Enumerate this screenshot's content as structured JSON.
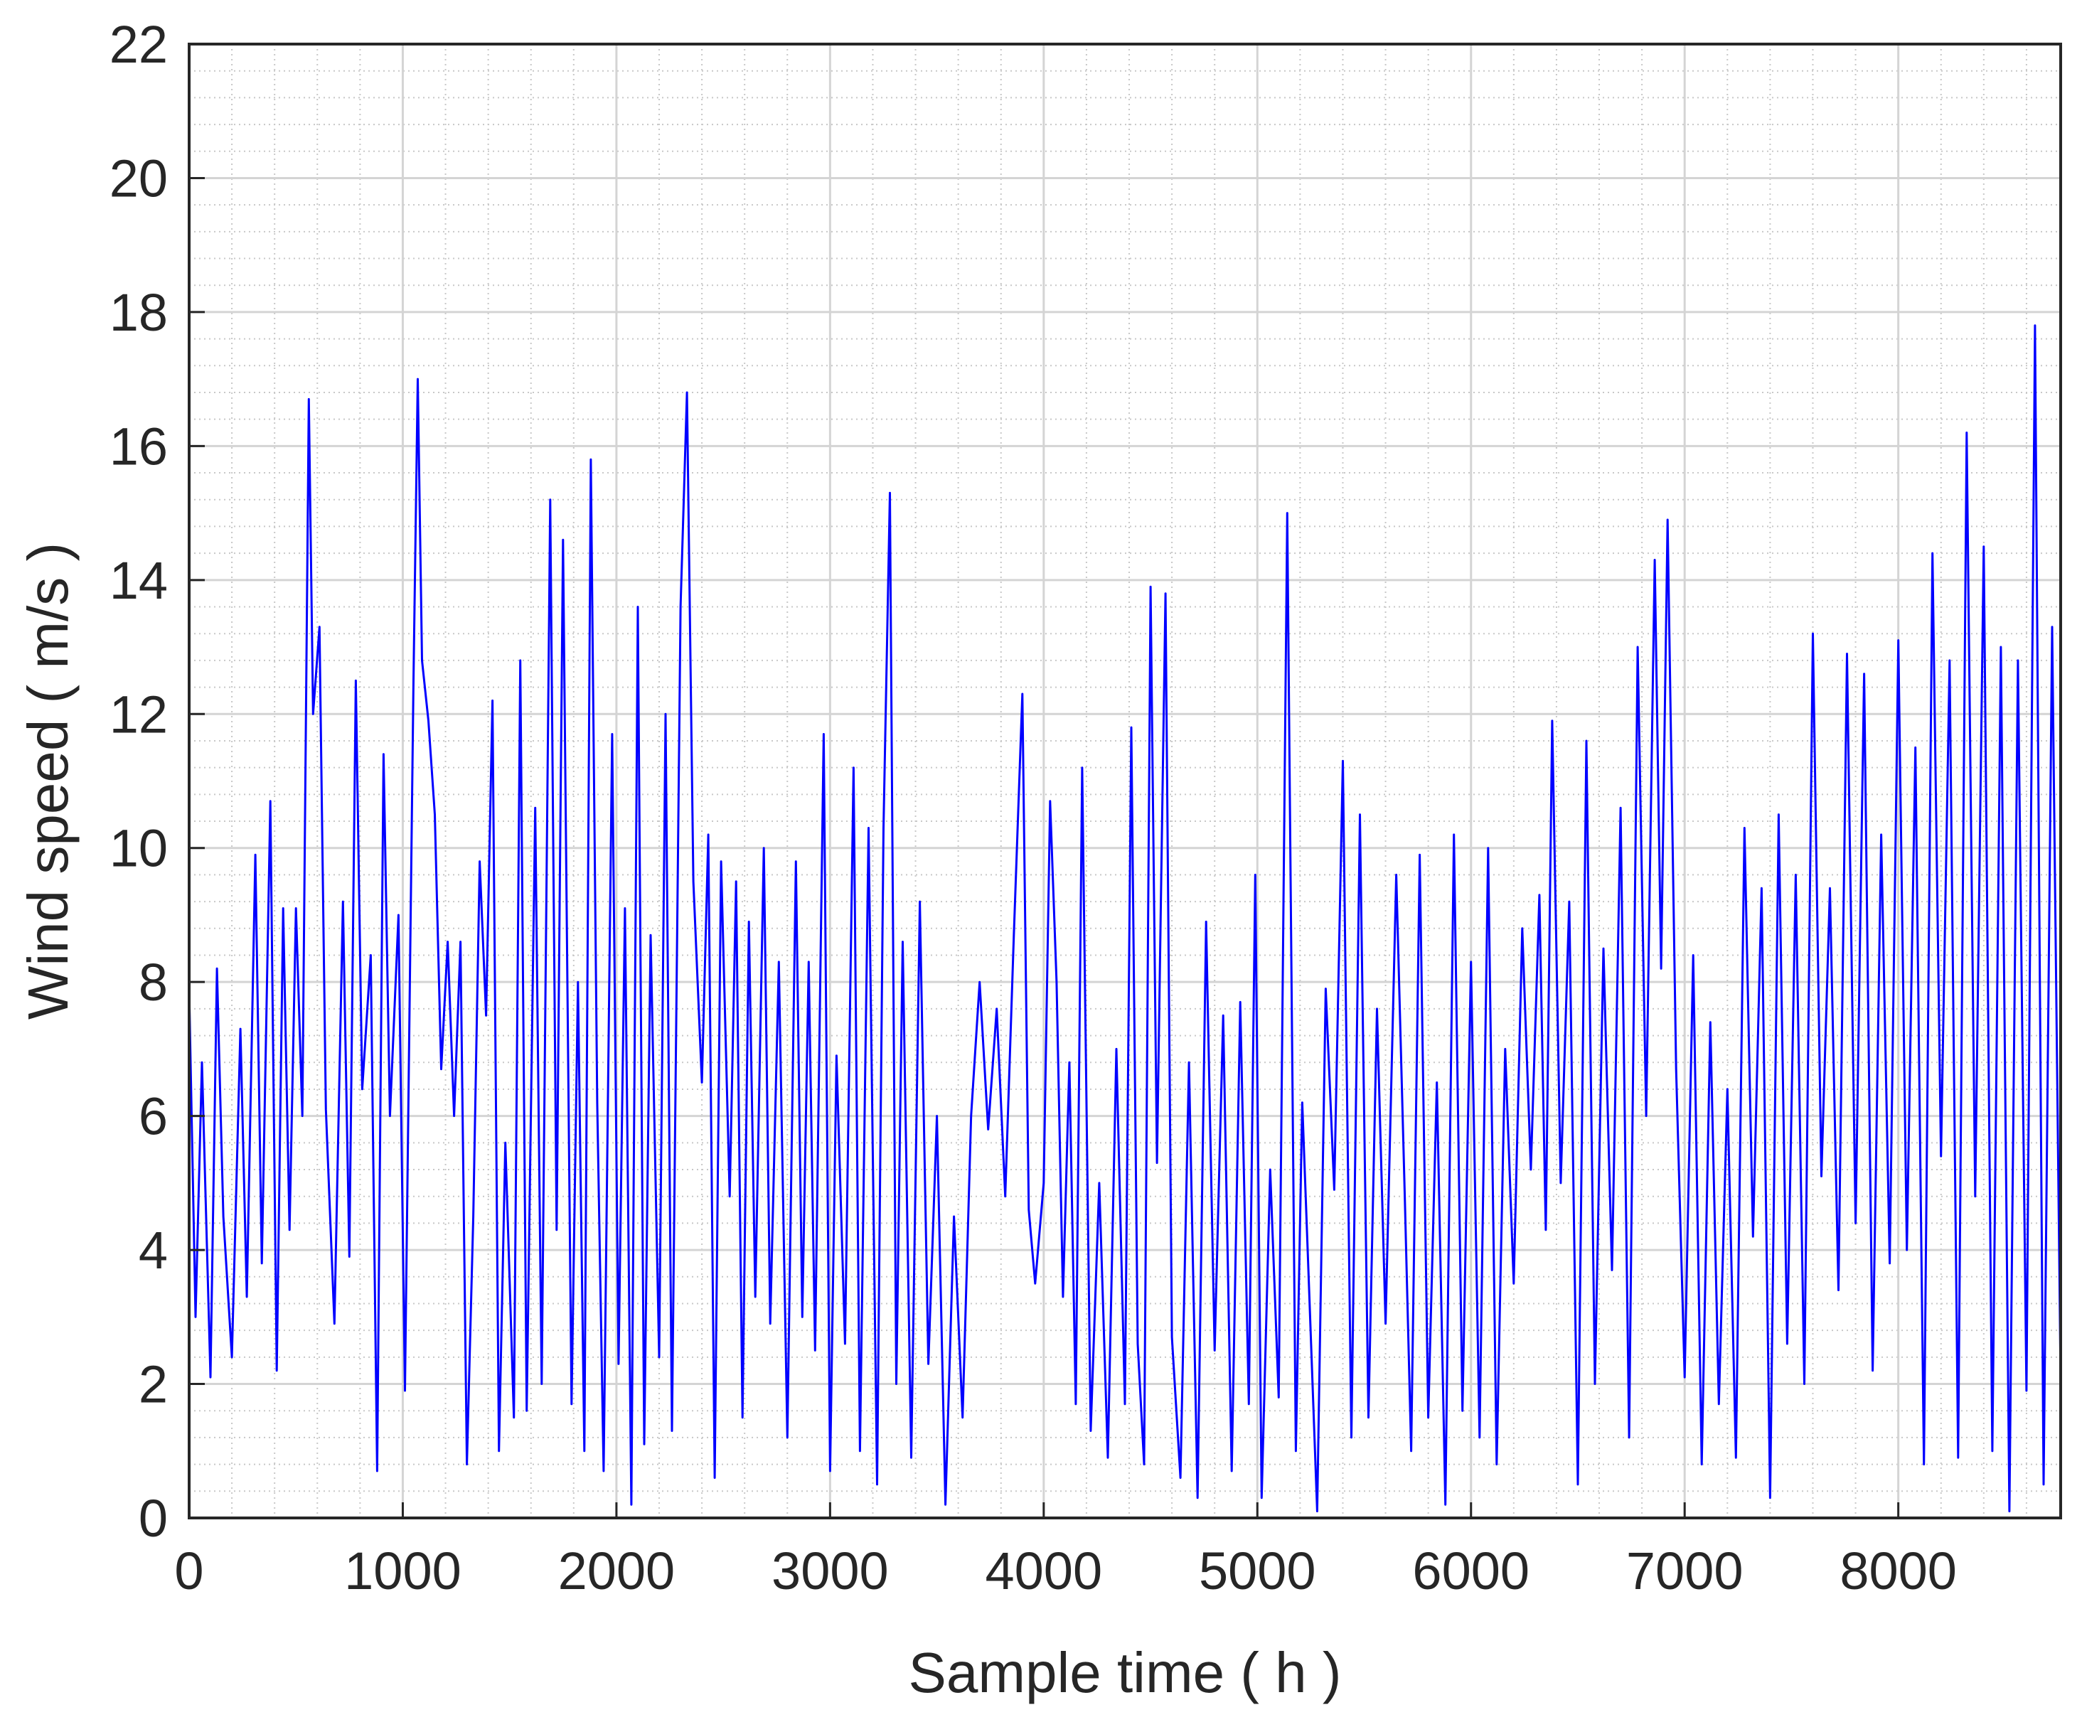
{
  "chart_data": {
    "type": "line",
    "title": "",
    "xlabel": "Sample time ( h )",
    "ylabel": "Wind speed ( m/s )",
    "xlim": [
      0,
      8760
    ],
    "ylim": [
      0,
      22
    ],
    "xticks": [
      0,
      1000,
      2000,
      3000,
      4000,
      5000,
      6000,
      7000,
      8000
    ],
    "yticks": [
      0,
      2,
      4,
      6,
      8,
      10,
      12,
      14,
      16,
      18,
      20,
      22
    ],
    "xtick_labels": [
      "0",
      "1000",
      "2000",
      "3000",
      "4000",
      "5000",
      "6000",
      "7000",
      "8000"
    ],
    "ytick_labels": [
      "0",
      "2",
      "4",
      "6",
      "8",
      "10",
      "12",
      "14",
      "16",
      "18",
      "20",
      "22"
    ],
    "grid": true,
    "minor_grid": true,
    "legend": "none",
    "line_color": "#0000ff",
    "series": [
      {
        "values_note_x": "hourly samples, approximate",
        "points": [
          [
            0,
            7.9
          ],
          [
            30,
            3.0
          ],
          [
            60,
            6.8
          ],
          [
            100,
            2.1
          ],
          [
            130,
            8.2
          ],
          [
            160,
            4.5
          ],
          [
            200,
            2.4
          ],
          [
            240,
            7.3
          ],
          [
            270,
            3.3
          ],
          [
            310,
            9.9
          ],
          [
            340,
            3.8
          ],
          [
            380,
            10.7
          ],
          [
            410,
            2.2
          ],
          [
            440,
            9.1
          ],
          [
            470,
            4.3
          ],
          [
            500,
            9.1
          ],
          [
            530,
            6.0
          ],
          [
            560,
            16.7
          ],
          [
            580,
            12.0
          ],
          [
            610,
            13.3
          ],
          [
            640,
            6.1
          ],
          [
            680,
            2.9
          ],
          [
            720,
            9.2
          ],
          [
            750,
            3.9
          ],
          [
            780,
            12.5
          ],
          [
            810,
            6.4
          ],
          [
            850,
            8.4
          ],
          [
            880,
            0.7
          ],
          [
            910,
            11.4
          ],
          [
            940,
            6.0
          ],
          [
            980,
            9.0
          ],
          [
            1010,
            1.9
          ],
          [
            1050,
            12.5
          ],
          [
            1070,
            17.0
          ],
          [
            1090,
            12.8
          ],
          [
            1120,
            11.9
          ],
          [
            1150,
            10.5
          ],
          [
            1180,
            6.7
          ],
          [
            1210,
            8.6
          ],
          [
            1240,
            6.0
          ],
          [
            1270,
            8.6
          ],
          [
            1300,
            0.8
          ],
          [
            1330,
            4.5
          ],
          [
            1360,
            9.8
          ],
          [
            1390,
            7.5
          ],
          [
            1420,
            12.2
          ],
          [
            1450,
            1.0
          ],
          [
            1480,
            5.6
          ],
          [
            1520,
            1.5
          ],
          [
            1550,
            12.8
          ],
          [
            1580,
            1.6
          ],
          [
            1620,
            10.6
          ],
          [
            1650,
            2.0
          ],
          [
            1690,
            15.2
          ],
          [
            1720,
            4.3
          ],
          [
            1750,
            14.6
          ],
          [
            1790,
            1.7
          ],
          [
            1820,
            8.0
          ],
          [
            1850,
            1.0
          ],
          [
            1880,
            15.8
          ],
          [
            1910,
            6.2
          ],
          [
            1940,
            0.7
          ],
          [
            1980,
            11.7
          ],
          [
            2010,
            2.3
          ],
          [
            2040,
            9.1
          ],
          [
            2070,
            0.2
          ],
          [
            2100,
            13.6
          ],
          [
            2130,
            1.1
          ],
          [
            2160,
            8.7
          ],
          [
            2200,
            2.4
          ],
          [
            2230,
            12.0
          ],
          [
            2260,
            1.3
          ],
          [
            2300,
            13.6
          ],
          [
            2330,
            16.8
          ],
          [
            2360,
            9.5
          ],
          [
            2400,
            6.5
          ],
          [
            2430,
            10.2
          ],
          [
            2460,
            0.6
          ],
          [
            2490,
            9.8
          ],
          [
            2530,
            4.8
          ],
          [
            2560,
            9.5
          ],
          [
            2590,
            1.5
          ],
          [
            2620,
            8.9
          ],
          [
            2650,
            3.3
          ],
          [
            2690,
            10.0
          ],
          [
            2720,
            2.9
          ],
          [
            2760,
            8.3
          ],
          [
            2800,
            1.2
          ],
          [
            2840,
            9.8
          ],
          [
            2870,
            3.0
          ],
          [
            2900,
            8.3
          ],
          [
            2930,
            2.5
          ],
          [
            2970,
            11.7
          ],
          [
            3000,
            0.7
          ],
          [
            3030,
            6.9
          ],
          [
            3070,
            2.6
          ],
          [
            3110,
            11.2
          ],
          [
            3140,
            1.0
          ],
          [
            3180,
            10.3
          ],
          [
            3220,
            0.5
          ],
          [
            3250,
            10.3
          ],
          [
            3280,
            15.3
          ],
          [
            3310,
            2.0
          ],
          [
            3340,
            8.6
          ],
          [
            3380,
            0.9
          ],
          [
            3420,
            9.2
          ],
          [
            3460,
            2.3
          ],
          [
            3500,
            6.0
          ],
          [
            3540,
            0.2
          ],
          [
            3580,
            4.5
          ],
          [
            3620,
            1.5
          ],
          [
            3660,
            6.0
          ],
          [
            3700,
            8.0
          ],
          [
            3740,
            5.8
          ],
          [
            3780,
            7.6
          ],
          [
            3820,
            4.8
          ],
          [
            3860,
            8.7
          ],
          [
            3900,
            12.3
          ],
          [
            3930,
            4.6
          ],
          [
            3960,
            3.5
          ],
          [
            4000,
            5.0
          ],
          [
            4030,
            10.7
          ],
          [
            4060,
            8.0
          ],
          [
            4090,
            3.3
          ],
          [
            4120,
            6.8
          ],
          [
            4150,
            1.7
          ],
          [
            4180,
            11.2
          ],
          [
            4220,
            1.3
          ],
          [
            4260,
            5.0
          ],
          [
            4300,
            0.9
          ],
          [
            4340,
            7.0
          ],
          [
            4380,
            1.7
          ],
          [
            4410,
            11.8
          ],
          [
            4440,
            2.6
          ],
          [
            4470,
            0.8
          ],
          [
            4500,
            13.9
          ],
          [
            4530,
            5.3
          ],
          [
            4570,
            13.8
          ],
          [
            4600,
            2.7
          ],
          [
            4640,
            0.6
          ],
          [
            4680,
            6.8
          ],
          [
            4720,
            0.3
          ],
          [
            4760,
            8.9
          ],
          [
            4800,
            2.5
          ],
          [
            4840,
            7.5
          ],
          [
            4880,
            0.7
          ],
          [
            4920,
            7.7
          ],
          [
            4960,
            1.7
          ],
          [
            4990,
            9.6
          ],
          [
            5020,
            0.3
          ],
          [
            5060,
            5.2
          ],
          [
            5100,
            1.8
          ],
          [
            5140,
            15.0
          ],
          [
            5180,
            1.0
          ],
          [
            5210,
            6.2
          ],
          [
            5240,
            3.6
          ],
          [
            5280,
            0.1
          ],
          [
            5320,
            7.9
          ],
          [
            5360,
            4.9
          ],
          [
            5400,
            11.3
          ],
          [
            5440,
            1.2
          ],
          [
            5480,
            10.5
          ],
          [
            5520,
            1.5
          ],
          [
            5560,
            7.6
          ],
          [
            5600,
            2.9
          ],
          [
            5650,
            9.6
          ],
          [
            5690,
            4.8
          ],
          [
            5720,
            1.0
          ],
          [
            5760,
            9.9
          ],
          [
            5800,
            1.5
          ],
          [
            5840,
            6.5
          ],
          [
            5880,
            0.2
          ],
          [
            5920,
            10.2
          ],
          [
            5960,
            1.6
          ],
          [
            6000,
            8.3
          ],
          [
            6040,
            1.2
          ],
          [
            6080,
            10.0
          ],
          [
            6120,
            0.8
          ],
          [
            6160,
            7.0
          ],
          [
            6200,
            3.5
          ],
          [
            6240,
            8.8
          ],
          [
            6280,
            5.2
          ],
          [
            6320,
            9.3
          ],
          [
            6350,
            4.3
          ],
          [
            6380,
            11.9
          ],
          [
            6420,
            5.0
          ],
          [
            6460,
            9.2
          ],
          [
            6500,
            0.5
          ],
          [
            6540,
            11.6
          ],
          [
            6580,
            2.0
          ],
          [
            6620,
            8.5
          ],
          [
            6660,
            3.7
          ],
          [
            6700,
            10.6
          ],
          [
            6740,
            1.2
          ],
          [
            6780,
            13.0
          ],
          [
            6820,
            6.0
          ],
          [
            6860,
            14.3
          ],
          [
            6890,
            8.2
          ],
          [
            6920,
            14.9
          ],
          [
            6960,
            6.7
          ],
          [
            7000,
            2.1
          ],
          [
            7040,
            8.4
          ],
          [
            7080,
            0.8
          ],
          [
            7120,
            7.4
          ],
          [
            7160,
            1.7
          ],
          [
            7200,
            6.4
          ],
          [
            7240,
            0.9
          ],
          [
            7280,
            10.3
          ],
          [
            7320,
            4.2
          ],
          [
            7360,
            9.4
          ],
          [
            7400,
            0.3
          ],
          [
            7440,
            10.5
          ],
          [
            7480,
            2.6
          ],
          [
            7520,
            9.6
          ],
          [
            7560,
            2.0
          ],
          [
            7600,
            13.2
          ],
          [
            7640,
            5.1
          ],
          [
            7680,
            9.4
          ],
          [
            7720,
            3.4
          ],
          [
            7760,
            12.9
          ],
          [
            7800,
            4.4
          ],
          [
            7840,
            12.6
          ],
          [
            7880,
            2.2
          ],
          [
            7920,
            10.2
          ],
          [
            7960,
            3.8
          ],
          [
            8000,
            13.1
          ],
          [
            8040,
            4.0
          ],
          [
            8080,
            11.5
          ],
          [
            8120,
            0.8
          ],
          [
            8160,
            14.4
          ],
          [
            8200,
            5.4
          ],
          [
            8240,
            12.8
          ],
          [
            8280,
            0.9
          ],
          [
            8320,
            16.2
          ],
          [
            8360,
            4.8
          ],
          [
            8400,
            14.5
          ],
          [
            8440,
            1.0
          ],
          [
            8480,
            13.0
          ],
          [
            8520,
            0.1
          ],
          [
            8560,
            12.8
          ],
          [
            8600,
            1.9
          ],
          [
            8640,
            17.8
          ],
          [
            8680,
            0.5
          ],
          [
            8720,
            13.3
          ],
          [
            8760,
            2.0
          ]
        ]
      }
    ]
  }
}
